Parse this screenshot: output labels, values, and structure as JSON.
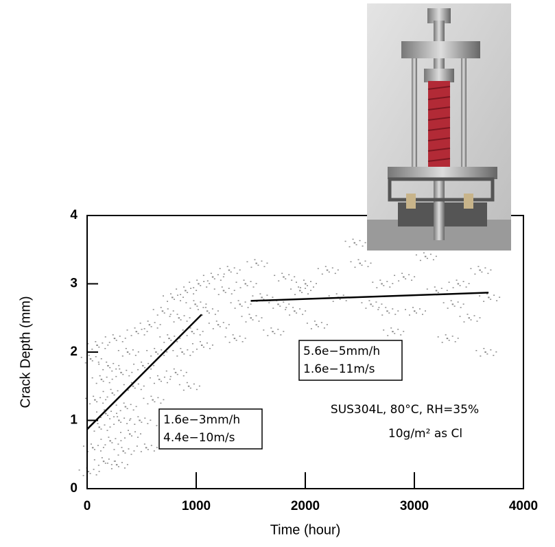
{
  "chart_data": {
    "type": "scatter",
    "x_label": "Time (hour)",
    "y_label": "Crack Depth (mm)",
    "xlim": [
      0,
      4000
    ],
    "ylim": [
      0,
      4
    ],
    "xticks": [
      0,
      1000,
      2000,
      3000,
      4000
    ],
    "yticks": [
      0,
      1,
      2,
      3,
      4
    ],
    "grid": false,
    "series": [
      {
        "color": "#8a8a8a",
        "x": [
          10,
          30,
          50,
          70,
          90,
          110,
          130,
          150,
          170,
          190,
          210,
          230,
          250,
          270,
          290,
          310,
          330,
          350,
          370,
          390,
          420,
          450,
          480,
          510,
          540,
          570,
          600,
          630,
          660,
          690,
          720,
          750,
          780,
          810,
          840,
          870,
          900,
          930,
          960,
          990,
          1020,
          1050,
          1100,
          1150,
          1200,
          1250,
          1300,
          1350,
          1400,
          1450,
          1500,
          1550,
          1600,
          1700,
          1800,
          1900,
          2000,
          2100,
          2200,
          2300,
          2400,
          2500,
          2600,
          2700,
          2800,
          2900,
          3000,
          3100,
          3200,
          3300,
          3400,
          3500,
          3600,
          3650,
          3680,
          2450,
          1950,
          2750,
          3350,
          1750
        ],
        "values": [
          0.25,
          1.9,
          0.6,
          1.3,
          2.1,
          0.9,
          1.6,
          0.4,
          1.1,
          1.8,
          0.7,
          1.4,
          2.2,
          0.35,
          1.0,
          1.7,
          0.55,
          1.2,
          2.0,
          0.8,
          1.5,
          2.3,
          1.0,
          1.8,
          0.6,
          2.4,
          1.3,
          2.0,
          1.6,
          2.6,
          0.9,
          2.2,
          2.8,
          1.7,
          2.5,
          2.0,
          2.9,
          1.5,
          2.3,
          2.7,
          3.0,
          2.1,
          2.6,
          3.1,
          2.4,
          2.9,
          3.2,
          2.2,
          2.7,
          3.0,
          2.5,
          3.3,
          2.8,
          2.3,
          3.1,
          2.6,
          3.0,
          2.4,
          3.2,
          2.8,
          2.1,
          3.3,
          2.7,
          3.0,
          2.3,
          3.1,
          2.6,
          3.4,
          2.9,
          2.2,
          3.0,
          2.5,
          3.2,
          2.0,
          2.8,
          3.6,
          2.9,
          2.6,
          2.7,
          2.7
        ]
      }
    ],
    "fit_lines": [
      {
        "x": [
          0,
          1050
        ],
        "y": [
          0.87,
          2.55
        ],
        "label_lines": [
          "1.6e−3mm/h",
          "4.4e−10m/s"
        ]
      },
      {
        "x": [
          1500,
          3680
        ],
        "y": [
          2.75,
          2.87
        ],
        "label_lines": [
          "5.6e−5mm/h",
          "1.6e−11m/s"
        ]
      }
    ],
    "annotations": [
      "SUS304L, 80°C, RH=35%",
      "10g/m² as Cl"
    ]
  }
}
